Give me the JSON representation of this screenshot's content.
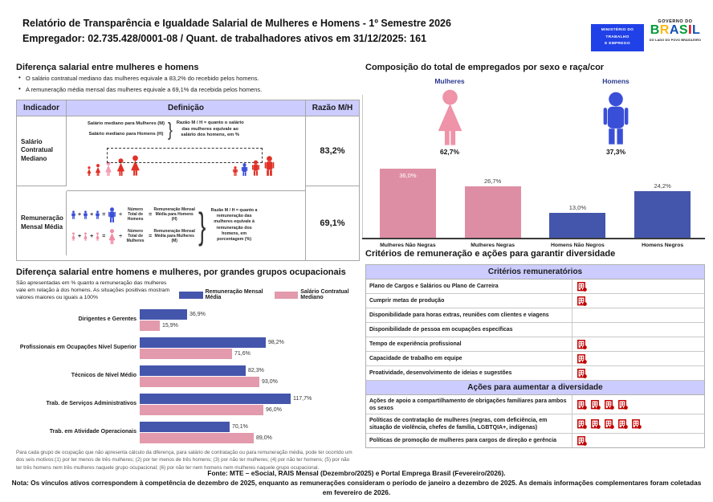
{
  "header": {
    "title": "Relatório de Transparência e Igualdade Salarial de Mulheres e Homens - 1º Semestre 2026",
    "subtitle": "Empregador: 02.735.428/0001-08 / Quant. de trabalhadores ativos em 31/12/2025: 161",
    "logo_mte": {
      "line1": "MINISTÉRIO DO",
      "line2": "TRABALHO",
      "line3": "E EMPREGO",
      "bg_color": "#2141E8"
    },
    "logo_gov": {
      "top": "GOVERNO DO",
      "name": "BRASIL",
      "tagline": "DO LADO DO POVO BRASILEIRO",
      "letter_colors": [
        "#009B3A",
        "#FDB913",
        "#1351B4",
        "#009B3A",
        "#E3000F",
        "#1351B4"
      ]
    }
  },
  "salary_gap": {
    "title": "Diferença salarial entre mulheres e homens",
    "bullets": [
      "O salário contratual mediano das mulheres equivale a 83,2% do recebido pelos homens.",
      "A remuneração média mensal das mulheres equivale a 69,1% da recebida pelos homens."
    ],
    "ops": {
      "plus": "+",
      "equals": "=",
      "divide": "÷"
    },
    "table": {
      "headers": [
        "Indicador",
        "Definição",
        "Razão M/H"
      ],
      "rows": [
        {
          "indicator": "Salário Contratual Mediano",
          "ratio": "83,2%",
          "diagram": {
            "line1": "Salário mediano para Mulheres (M)",
            "line2": "Salário mediano para Homens (H)",
            "note": "Razão M / H = quanto o salário das mulheres equivale ao salário dos homens, em %"
          }
        },
        {
          "indicator": "Remuneração Mensal Média",
          "ratio": "69,1%",
          "diagram": {
            "men_divisor": "Número Total de Homens",
            "men_result": "Remuneração Mensal Média para Homens (H)",
            "women_divisor": "Número Total de Mulheres",
            "women_result": "Remuneração Mensal Média para Mulheres (M)",
            "note": "Razão M / H = quanto a remuneração das mulheres equivale à remuneração dos homens, em porcentagem (%)"
          }
        }
      ]
    }
  },
  "occupational": {
    "subtitle": "São apresentadas em % quanto a remuneração das mulheres vale em relação à dos homens. As situações positivas mostram valores maiores ou iguais a 100%",
    "footnote": "Para cada grupo de ocupação que não apresenta cálculo da diferença, para salário de contratação ou para remuneração média, pode ter ocorrido um dos seis motivos:(1) por ter menos de três mulheres; (2) por ter menos de três homens; (3) por não ter mulheres; (4) por não ter homens; (5) por não ter três homens nem três mulheres naquele grupo ocupacional; (6) por não ter nem homens nem mulheres naquele grupo ocupacional."
  },
  "composition": {
    "women_label": "Mulheres",
    "women_pct": "62,7%",
    "men_label": "Homens",
    "men_pct": "37,3%",
    "women_color": "#EE93A8",
    "men_color": "#3A4FD7"
  },
  "criteria": {
    "title": "Critérios de remuneração e ações para garantir diversidade",
    "icon_color": "#C00000",
    "sections": [
      {
        "header": "Critérios remuneratórios",
        "rows": [
          {
            "label": "Plano de Cargos e Salários ou Plano de Carreira",
            "count": 1
          },
          {
            "label": "Cumprir metas de produção",
            "count": 1
          },
          {
            "label": "Disponibilidade para horas extras, reuniões com clientes e viagens",
            "count": 0
          },
          {
            "label": "Disponibilidade de pessoa em ocupações específicas",
            "count": 0
          },
          {
            "label": "Tempo de experiência profissional",
            "count": 1
          },
          {
            "label": "Capacidade de trabalho em equipe",
            "count": 1
          },
          {
            "label": "Proatividade, desenvolvimento de ideias e sugestões",
            "count": 1
          }
        ]
      },
      {
        "header": "Ações para aumentar a diversidade",
        "rows": [
          {
            "label": "Ações de apoio a compartilhamento de obrigações familiares para ambos os sexos",
            "count": 4
          },
          {
            "label": "Políticas de contratação de mulheres (negras, com deficiência, em situação de violência, chefes de família, LGBTQIA+, indígenas)",
            "count": 5
          },
          {
            "label": "Políticas de promoção de mulheres para cargos de direção e gerência",
            "count": 1
          }
        ]
      }
    ]
  },
  "footer": {
    "fonte": "Fonte: MTE – eSocial, RAIS Mensal (Dezembro/2025) e Portal Emprega Brasil (Fevereiro/2026).",
    "nota": "Nota: Os vínculos ativos correspondem à competência de dezembro de 2025, enquanto as remunerações consideram o período de janeiro a dezembro de 2025. As demais informações complementares foram coletadas em fevereiro de 2026."
  },
  "chart_data": [
    {
      "id": "composition_by_sex_race",
      "type": "bar",
      "title": "Composição do total de empregados por sexo e raça/cor",
      "categories": [
        "Mulheres Não Negras",
        "Mulheres Negras",
        "Homens Não Negros",
        "Homens Negros"
      ],
      "values": [
        36.0,
        26.7,
        13.0,
        24.2
      ],
      "labels": [
        "36,0%",
        "26,7%",
        "13,0%",
        "24,2%"
      ],
      "colors": [
        "#DE8EA4",
        "#DE8EA4",
        "#4456AC",
        "#4456AC"
      ],
      "value_label_inside": [
        true,
        false,
        false,
        false
      ],
      "ylim": [
        0,
        38
      ],
      "grid": false,
      "legend": false
    },
    {
      "id": "gap_by_occupation",
      "type": "bar-horizontal-grouped",
      "title": "Diferença salarial entre homens e mulheres, por grandes grupos ocupacionais",
      "categories": [
        "Dirigentes e Gerentes",
        "Profissionais em Ocupações Nível Superior",
        "Técnicos de Nível Médio",
        "Trab. de Serviços Administrativos",
        "Trab. em Atividade Operacionais"
      ],
      "series": [
        {
          "name": "Remuneração Mensal Média",
          "color": "#4456AC",
          "values": [
            36.9,
            98.2,
            82.3,
            117.7,
            70.1
          ],
          "labels": [
            "36,9%",
            "98,2%",
            "82,3%",
            "117,7%",
            "70,1%"
          ]
        },
        {
          "name": "Salário Contratual Mediano",
          "color": "#E29AAC",
          "values": [
            15.9,
            71.6,
            93.0,
            96.0,
            89.0
          ],
          "labels": [
            "15,9%",
            "71,6%",
            "93,0%",
            "96,0%",
            "89,0%"
          ]
        }
      ],
      "xlim": [
        0,
        130
      ],
      "grid": false,
      "legend_position": "top-right"
    }
  ]
}
